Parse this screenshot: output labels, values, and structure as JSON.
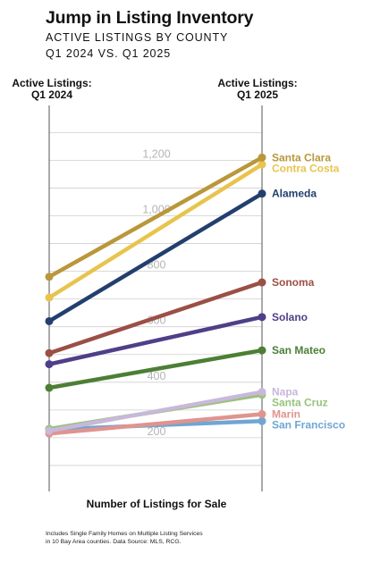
{
  "title": "Jump in Listing Inventory",
  "subtitle_line1": "ACTIVE LISTINGS BY COUNTY",
  "subtitle_line2": "Q1 2024 VS. Q1 2025",
  "left_axis_title": [
    "Active Listings:",
    "Q1 2024"
  ],
  "right_axis_title": [
    "Active Listings:",
    "Q1 2025"
  ],
  "xlabel": "Number of Listings for Sale",
  "source_note": [
    "Includes Single Family Homes on Multiple Listing Services",
    "in 10 Bay Area counties. Data Source: MLS, RCG."
  ],
  "chart_data": {
    "type": "line",
    "style": "slope",
    "categories": [
      "Q1 2024",
      "Q1 2025"
    ],
    "ylim": [
      0,
      1400
    ],
    "yticks": [
      200,
      400,
      600,
      800,
      1000,
      1200
    ],
    "ytick_labels": [
      "200",
      "400",
      "600",
      "800",
      "1,000",
      "1,200"
    ],
    "grid": true,
    "series": [
      {
        "name": "Santa Clara",
        "values": [
          780,
          1210
        ],
        "color": "#B9973A"
      },
      {
        "name": "Contra Costa",
        "values": [
          705,
          1185
        ],
        "color": "#E8C44E"
      },
      {
        "name": "Alameda",
        "values": [
          620,
          1080
        ],
        "color": "#223F6E"
      },
      {
        "name": "Sonoma",
        "values": [
          505,
          760
        ],
        "color": "#9B4F45"
      },
      {
        "name": "Solano",
        "values": [
          465,
          635
        ],
        "color": "#4F3F88"
      },
      {
        "name": "San Mateo",
        "values": [
          380,
          515
        ],
        "color": "#4C7F35"
      },
      {
        "name": "Napa",
        "values": [
          225,
          365
        ],
        "color": "#C9B8DA"
      },
      {
        "name": "Santa Cruz",
        "values": [
          232,
          355
        ],
        "color": "#99C27C"
      },
      {
        "name": "Marin",
        "values": [
          215,
          285
        ],
        "color": "#E0948F"
      },
      {
        "name": "San Francisco",
        "values": [
          230,
          260
        ],
        "color": "#6FA6D3"
      }
    ]
  }
}
